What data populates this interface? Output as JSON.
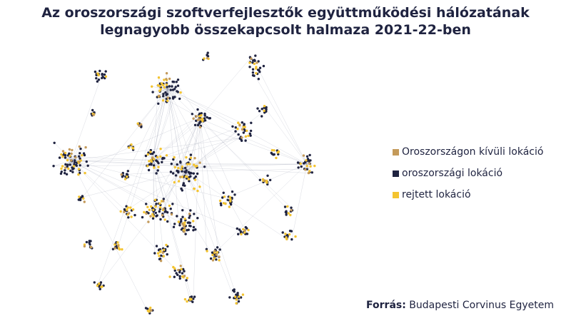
{
  "title": {
    "line1": "Az oroszországi szoftverfejlesztők együttműködési hálózatának",
    "line2": "legnagyobb összekapcsolt halmaza 2021-22-ben"
  },
  "legend": {
    "items": [
      {
        "label": "Oroszországon kívüli lokáció",
        "color": "#c49a5a"
      },
      {
        "label": "oroszországi lokáció",
        "color": "#1f2340"
      },
      {
        "label": "rejtett lokáció",
        "color": "#f4c430"
      }
    ]
  },
  "source": {
    "label": "Forrás:",
    "text": "Budapesti Corvinus Egyetem"
  },
  "colors": {
    "edge": "#9aa0b4"
  }
}
